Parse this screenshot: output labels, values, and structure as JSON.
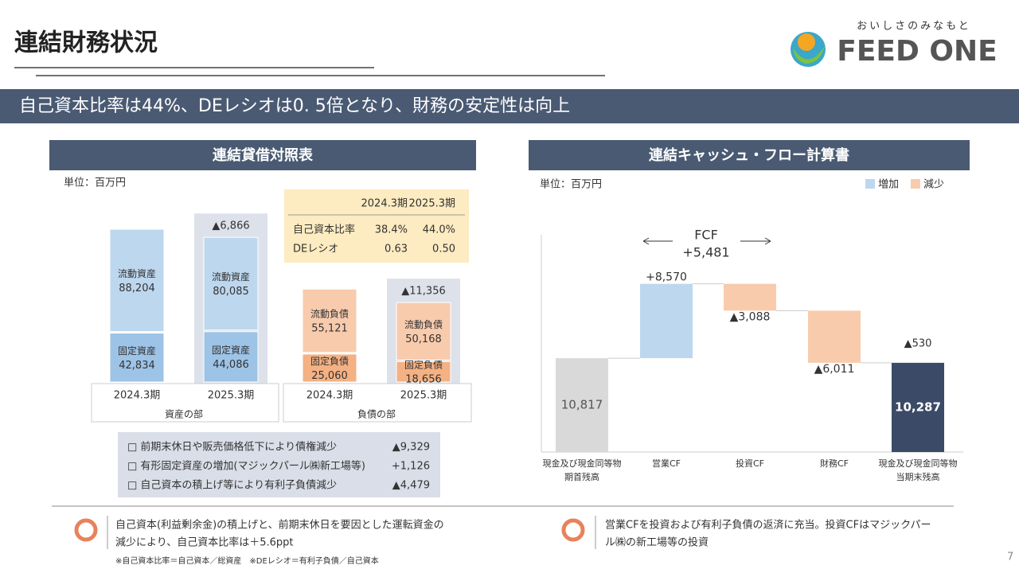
{
  "header": {
    "title": "連結財務状況",
    "tagline": "おいしさのみなもと",
    "logo": "FEED ONE"
  },
  "banner": "自己資本比率は44%、DEレシオは0. 5倍となり、財務の安定性は向上",
  "balance_sheet": {
    "title": "連結貸借対照表",
    "unit": "単位：百万円",
    "periods": [
      "2024.3期",
      "2025.3期"
    ],
    "assets": {
      "label": "資産の部",
      "change": "▲6,866",
      "segments": [
        {
          "name": "固定資産",
          "values": [
            42834,
            44086
          ],
          "labels": [
            "42,834",
            "44,086"
          ]
        },
        {
          "name": "流動資産",
          "values": [
            88204,
            80085
          ],
          "labels": [
            "88,204",
            "80,085"
          ]
        }
      ]
    },
    "liabilities": {
      "label": "負債の部",
      "change": "▲11,356",
      "segments": [
        {
          "name": "固定負債",
          "values": [
            25060,
            18656
          ],
          "labels": [
            "25,060",
            "18,656"
          ]
        },
        {
          "name": "流動負債",
          "values": [
            55121,
            50168
          ],
          "labels": [
            "55,121",
            "50,168"
          ]
        }
      ]
    }
  },
  "ratios": {
    "columns": [
      "2024.3期",
      "2025.3期"
    ],
    "rows": [
      {
        "name": "自己資本比率",
        "values": [
          "38.4%",
          "44.0%"
        ]
      },
      {
        "name": "DEレシオ",
        "values": [
          "0.63",
          "0.50"
        ]
      }
    ]
  },
  "notes": [
    {
      "text": "□ 前期末休日や販売価格低下により債権減少",
      "value": "▲9,329"
    },
    {
      "text": "□ 有形固定資産の増加(マジックパール㈱新工場等)",
      "value": "+1,126"
    },
    {
      "text": "□ 自己資本の積上げ等により有利子負債減少",
      "value": "▲4,479"
    }
  ],
  "cash_flow": {
    "title": "連結キャッシュ・フロー計算書",
    "unit": "単位：百万円",
    "legend": [
      "増加",
      "減少"
    ],
    "fcf_label": "FCF",
    "fcf_value": "+5,481",
    "adjustment": "▲530",
    "bars": [
      {
        "kind": "total",
        "category": [
          "現金及び現金同等物",
          "期首残高"
        ],
        "value": 10817,
        "label": "10,817"
      },
      {
        "kind": "delta",
        "category": [
          "営業CF"
        ],
        "value": 8570,
        "label": "+8,570"
      },
      {
        "kind": "delta",
        "category": [
          "投資CF"
        ],
        "value": -3088,
        "label": "▲3,088"
      },
      {
        "kind": "delta",
        "category": [
          "財務CF"
        ],
        "value": -6011,
        "label": "▲6,011"
      },
      {
        "kind": "total",
        "category": [
          "現金及び現金同等物",
          "当期末残高"
        ],
        "value": 10287,
        "label": "10,287"
      }
    ]
  },
  "footer": {
    "left": [
      "自己資本(利益剰余金)の積上げと、前期末休日を要因とした運転資金の",
      "減少により、自己資本比率は＋5.6ppt"
    ],
    "note": "※自己資本比率＝自己資本／総資産　※DEレシオ＝有利子負債／自己資本",
    "right": [
      "営業CFを投資および有利子負債の返済に充当。投資CFはマジックパー",
      "ル㈱の新工場等の投資"
    ],
    "page": "7"
  }
}
